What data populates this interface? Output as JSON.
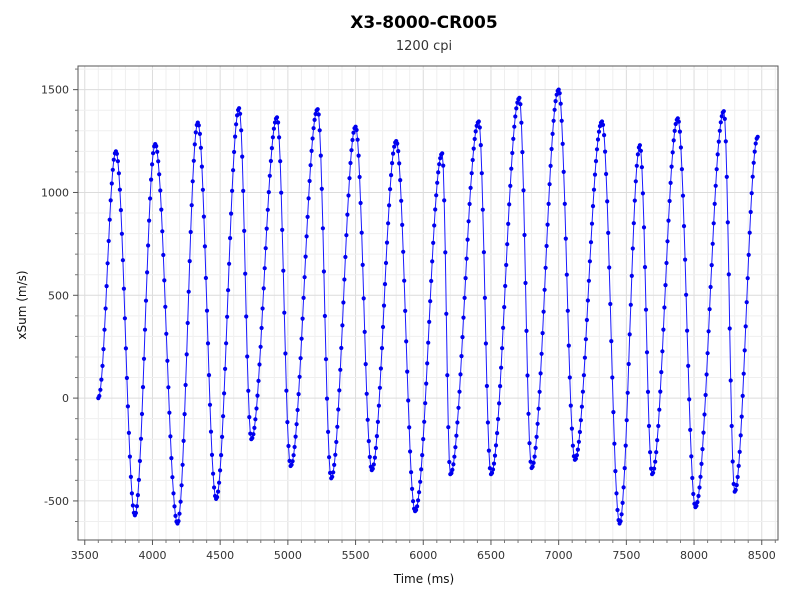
{
  "chart_data": {
    "type": "line",
    "title": "X3-8000-CR005",
    "subtitle": "1200 cpi",
    "xlabel": "Time (ms)",
    "ylabel": "xSum (m/s)",
    "xlim": [
      3450,
      8620
    ],
    "ylim": [
      -690,
      1615
    ],
    "xticks": [
      3500,
      4000,
      4500,
      5000,
      5500,
      6000,
      6500,
      7000,
      7500,
      8000,
      8500
    ],
    "yticks": [
      -500,
      0,
      500,
      1000,
      1500
    ],
    "grid": true,
    "line_color": "#1a1aff",
    "marker_color": "#0000ee",
    "extrema": [
      [
        3600,
        0
      ],
      [
        3730,
        1200
      ],
      [
        3870,
        -570
      ],
      [
        4020,
        1235
      ],
      [
        4185,
        -610
      ],
      [
        4335,
        1340
      ],
      [
        4470,
        -490
      ],
      [
        4640,
        1410
      ],
      [
        4730,
        -200
      ],
      [
        4920,
        1365
      ],
      [
        5020,
        -330
      ],
      [
        5220,
        1405
      ],
      [
        5320,
        -390
      ],
      [
        5500,
        1320
      ],
      [
        5620,
        -350
      ],
      [
        5800,
        1250
      ],
      [
        5940,
        -550
      ],
      [
        6140,
        1190
      ],
      [
        6200,
        -370
      ],
      [
        6410,
        1345
      ],
      [
        6500,
        -370
      ],
      [
        6710,
        1460
      ],
      [
        6800,
        -340
      ],
      [
        7000,
        1500
      ],
      [
        7120,
        -300
      ],
      [
        7320,
        1345
      ],
      [
        7450,
        -610
      ],
      [
        7600,
        1230
      ],
      [
        7690,
        -370
      ],
      [
        7880,
        1360
      ],
      [
        8010,
        -530
      ],
      [
        8220,
        1395
      ],
      [
        8300,
        -455
      ],
      [
        8470,
        1270
      ]
    ]
  }
}
